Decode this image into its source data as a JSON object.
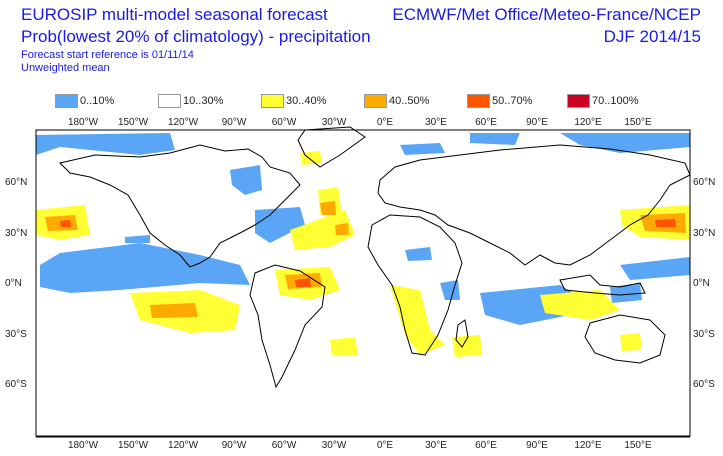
{
  "header": {
    "title_line1": "EUROSIP multi-model seasonal forecast",
    "title_line2": "Prob(lowest 20% of climatology) - precipitation",
    "subtitle1": "Forecast start reference is 01/11/14",
    "subtitle2": "Unweighted mean",
    "right_line1": "ECMWF/Met Office/Meteo-France/NCEP",
    "right_line2": "DJF 2014/15"
  },
  "legend": [
    {
      "label": "0..10%",
      "color": "#5aa5f5"
    },
    {
      "label": "10..30%",
      "color": "#ffffff"
    },
    {
      "label": "30..40%",
      "color": "#ffff33"
    },
    {
      "label": "40..50%",
      "color": "#ffaa00"
    },
    {
      "label": "50..70%",
      "color": "#ff5500"
    },
    {
      "label": "70..100%",
      "color": "#cc0022"
    }
  ],
  "axes": {
    "lon_labels": [
      "180°W",
      "150°W",
      "120°W",
      "90°W",
      "60°W",
      "30°W",
      "0°E",
      "30°E",
      "60°E",
      "90°E",
      "120°E",
      "150°E"
    ],
    "lat_labels": [
      "60°N",
      "30°N",
      "0°N",
      "30°S",
      "60°S"
    ]
  }
}
